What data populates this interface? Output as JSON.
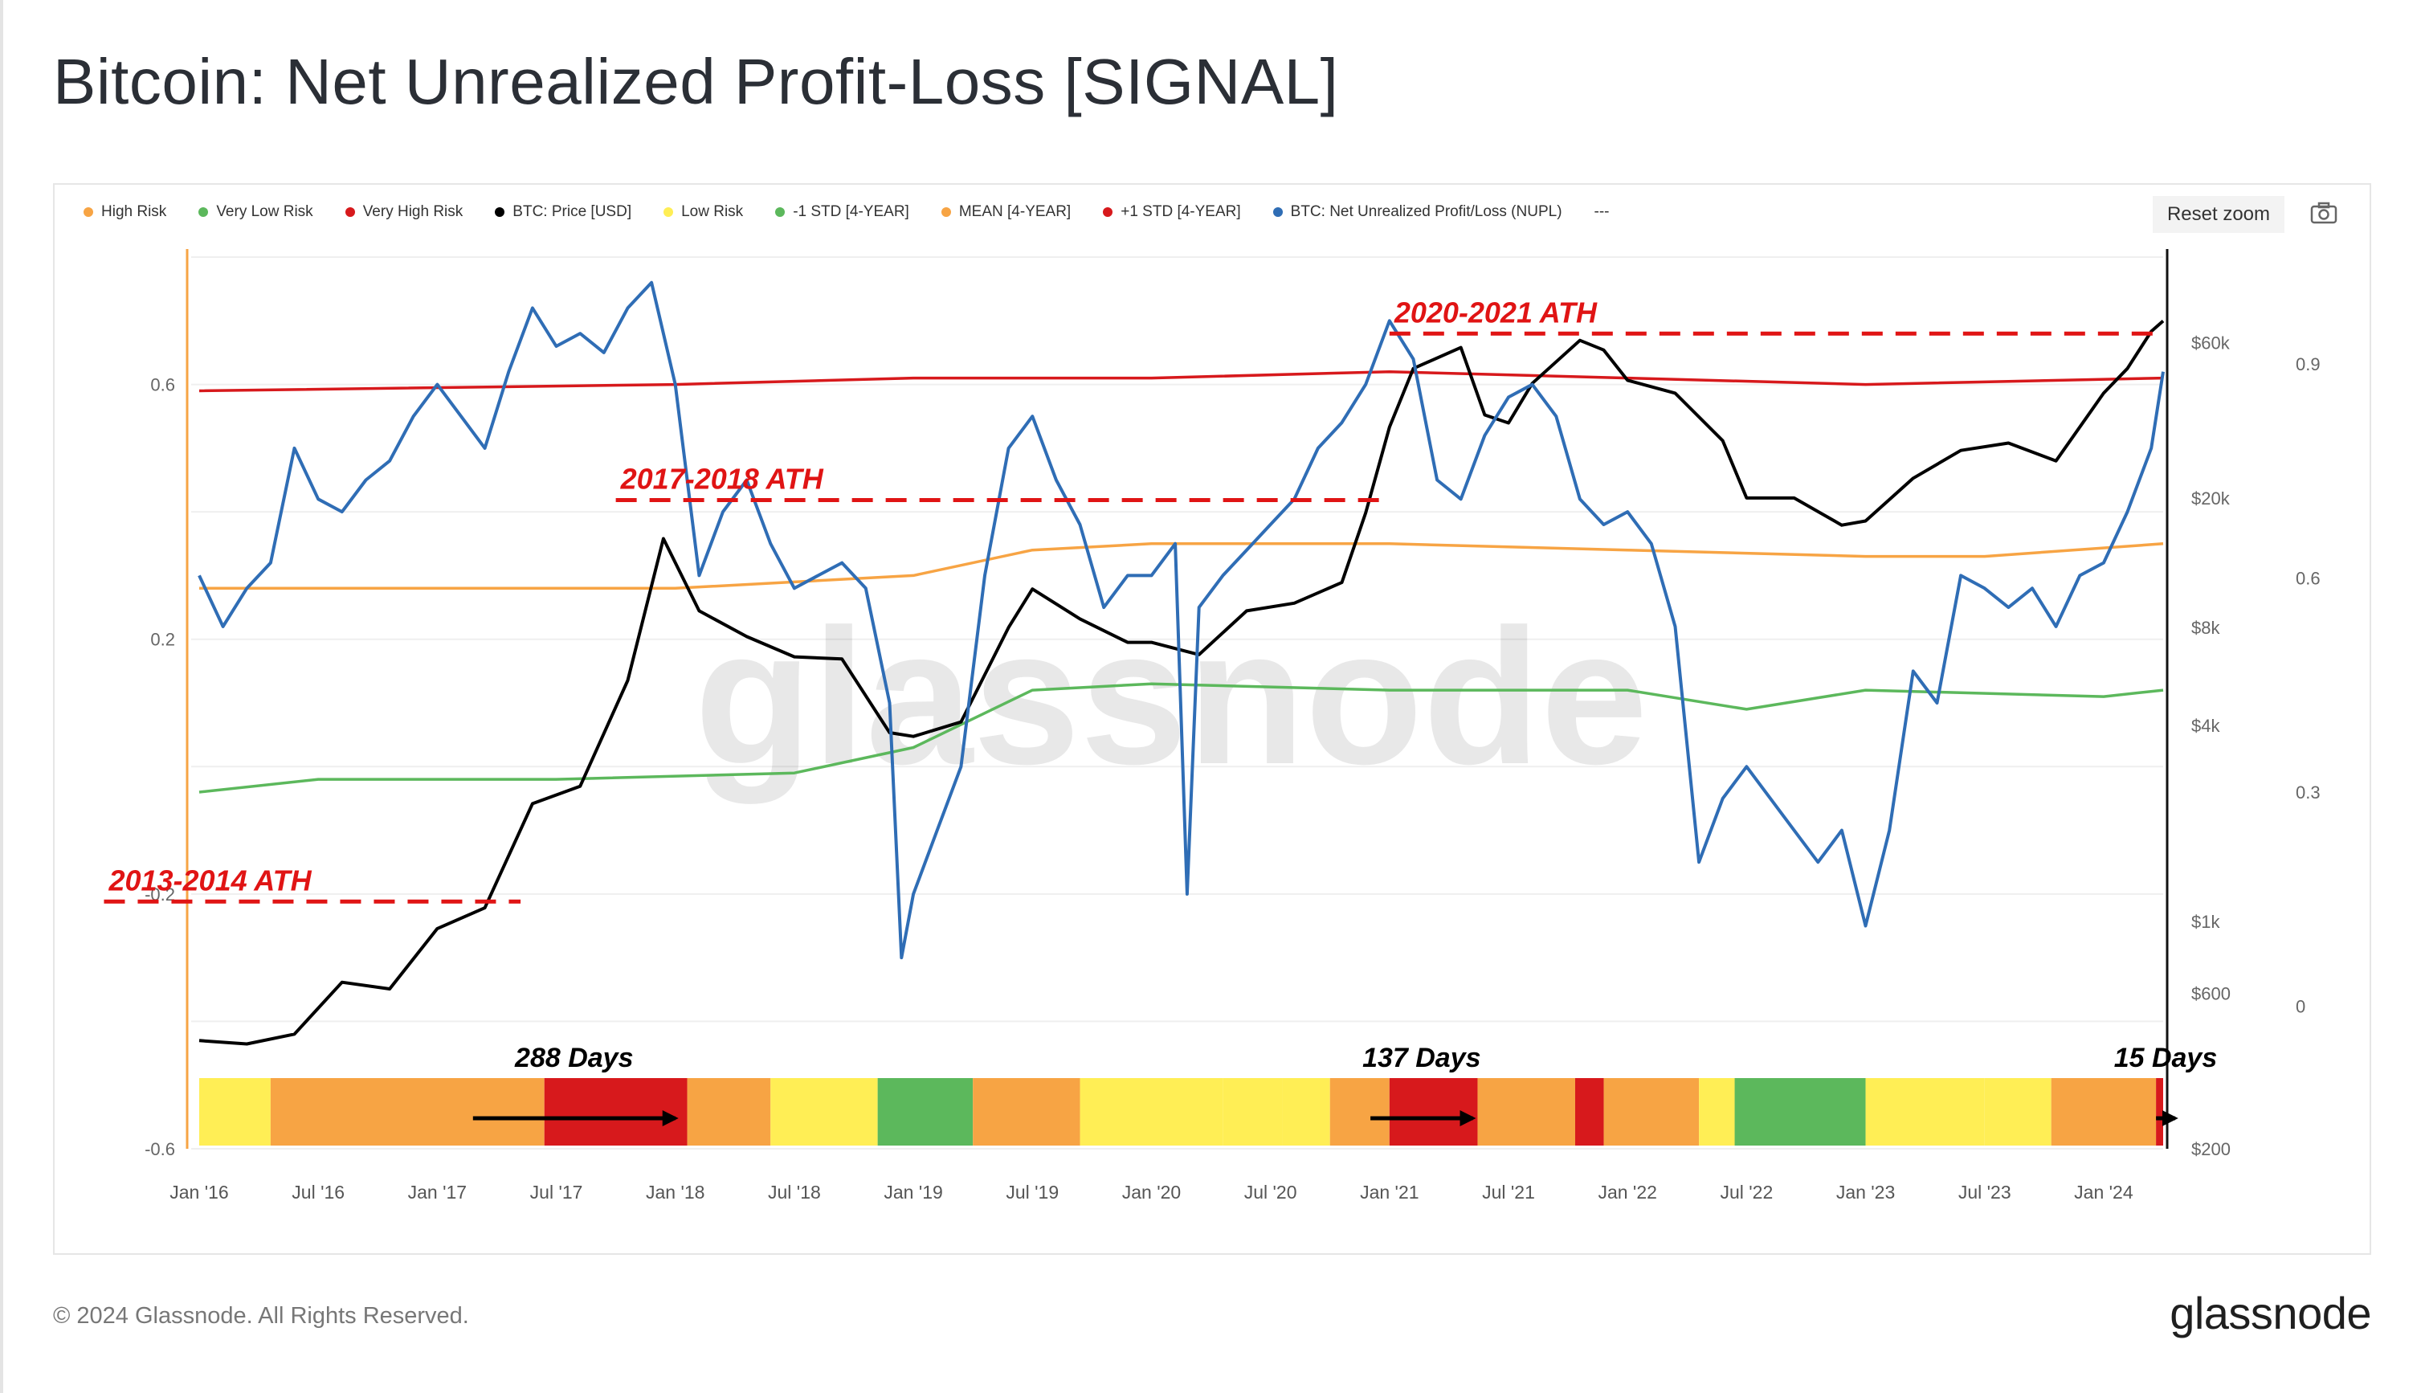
{
  "title": "Bitcoin: Net Unrealized Profit-Loss [SIGNAL]",
  "legend": [
    {
      "label": "High Risk",
      "color": "#f7a444"
    },
    {
      "label": "Very Low Risk",
      "color": "#5cb85c"
    },
    {
      "label": "Very High Risk",
      "color": "#d7191c"
    },
    {
      "label": "BTC: Price [USD]",
      "color": "#000000"
    },
    {
      "label": "Low Risk",
      "color": "#ffee55"
    },
    {
      "label": "-1 STD [4-YEAR]",
      "color": "#5cb85c"
    },
    {
      "label": "MEAN [4-YEAR]",
      "color": "#f7a444"
    },
    {
      "label": "+1 STD [4-YEAR]",
      "color": "#d7191c"
    },
    {
      "label": "BTC: Net Unrealized Profit/Loss (NUPL)",
      "color": "#2f6db5"
    }
  ],
  "legend_more": "---",
  "reset_zoom": "Reset zoom",
  "watermark": "glassnode",
  "copyright": "© 2024 Glassnode. All Rights Reserved.",
  "brand": "glassnode",
  "chart_data": {
    "type": "line",
    "title": "Bitcoin: Net Unrealized Profit-Loss [SIGNAL]",
    "x_range": [
      "2016-01-01",
      "2024-04-15"
    ],
    "x_ticks": [
      "Jan '16",
      "Jul '16",
      "Jan '17",
      "Jul '17",
      "Jan '18",
      "Jul '18",
      "Jan '19",
      "Jul '19",
      "Jan '20",
      "Jul '20",
      "Jan '21",
      "Jul '21",
      "Jan '22",
      "Jul '22",
      "Jan '23",
      "Jul '23",
      "Jan '24"
    ],
    "left_axis": {
      "ticks": [
        "0.6",
        "0.2",
        "-0.2",
        "-0.6"
      ],
      "range": [
        -0.6,
        0.8
      ]
    },
    "price_axis": {
      "scale": "log",
      "ticks": [
        "$60k",
        "$20k",
        "$8k",
        "$4k",
        "$1k",
        "$600",
        "$200"
      ],
      "values": [
        60000,
        20000,
        8000,
        4000,
        1000,
        600,
        200
      ]
    },
    "right_axis": {
      "ticks": [
        "0.9",
        "0.6",
        "0.3",
        "0"
      ],
      "values": [
        0.9,
        0.6,
        0.3,
        0
      ]
    },
    "series": [
      {
        "name": "BTC: Net Unrealized Profit/Loss (NUPL)",
        "color": "#2f6db5",
        "x": [
          2016.0,
          2016.1,
          2016.2,
          2016.3,
          2016.4,
          2016.5,
          2016.6,
          2016.7,
          2016.8,
          2016.9,
          2017.0,
          2017.1,
          2017.2,
          2017.3,
          2017.4,
          2017.5,
          2017.6,
          2017.7,
          2017.8,
          2017.9,
          2018.0,
          2018.1,
          2018.2,
          2018.3,
          2018.4,
          2018.5,
          2018.6,
          2018.7,
          2018.8,
          2018.9,
          2018.95,
          2019.0,
          2019.1,
          2019.2,
          2019.3,
          2019.4,
          2019.5,
          2019.6,
          2019.7,
          2019.8,
          2019.9,
          2020.0,
          2020.1,
          2020.15,
          2020.2,
          2020.3,
          2020.4,
          2020.5,
          2020.6,
          2020.7,
          2020.8,
          2020.9,
          2021.0,
          2021.1,
          2021.2,
          2021.3,
          2021.4,
          2021.5,
          2021.6,
          2021.7,
          2021.8,
          2021.9,
          2022.0,
          2022.1,
          2022.2,
          2022.3,
          2022.4,
          2022.5,
          2022.6,
          2022.7,
          2022.8,
          2022.9,
          2023.0,
          2023.1,
          2023.2,
          2023.3,
          2023.4,
          2023.5,
          2023.6,
          2023.7,
          2023.8,
          2023.9,
          2024.0,
          2024.1,
          2024.2,
          2024.25
        ],
        "y": [
          0.3,
          0.22,
          0.28,
          0.32,
          0.5,
          0.42,
          0.4,
          0.45,
          0.48,
          0.55,
          0.6,
          0.55,
          0.5,
          0.62,
          0.72,
          0.66,
          0.68,
          0.65,
          0.72,
          0.76,
          0.6,
          0.3,
          0.4,
          0.45,
          0.35,
          0.28,
          0.3,
          0.32,
          0.28,
          0.1,
          -0.3,
          -0.2,
          -0.1,
          0.0,
          0.3,
          0.5,
          0.55,
          0.45,
          0.38,
          0.25,
          0.3,
          0.3,
          0.35,
          -0.2,
          0.25,
          0.3,
          0.34,
          0.38,
          0.42,
          0.5,
          0.54,
          0.6,
          0.7,
          0.64,
          0.45,
          0.42,
          0.52,
          0.58,
          0.6,
          0.55,
          0.42,
          0.38,
          0.4,
          0.35,
          0.22,
          -0.15,
          -0.05,
          0.0,
          -0.05,
          -0.1,
          -0.15,
          -0.1,
          -0.25,
          -0.1,
          0.15,
          0.1,
          0.3,
          0.28,
          0.25,
          0.28,
          0.22,
          0.3,
          0.32,
          0.4,
          0.5,
          0.62
        ]
      },
      {
        "name": "BTC: Price [USD]",
        "color": "#000000",
        "axis": "price",
        "x": [
          2016.0,
          2016.2,
          2016.4,
          2016.6,
          2016.8,
          2017.0,
          2017.2,
          2017.4,
          2017.6,
          2017.8,
          2017.95,
          2018.1,
          2018.3,
          2018.5,
          2018.7,
          2018.9,
          2019.0,
          2019.2,
          2019.4,
          2019.5,
          2019.7,
          2019.9,
          2020.0,
          2020.2,
          2020.4,
          2020.6,
          2020.8,
          2020.9,
          2021.0,
          2021.1,
          2021.3,
          2021.4,
          2021.5,
          2021.6,
          2021.8,
          2021.9,
          2022.0,
          2022.2,
          2022.4,
          2022.5,
          2022.7,
          2022.9,
          2023.0,
          2023.2,
          2023.4,
          2023.6,
          2023.8,
          2024.0,
          2024.1,
          2024.2,
          2024.25
        ],
        "y": [
          430,
          420,
          450,
          650,
          620,
          950,
          1100,
          2300,
          2600,
          5500,
          15000,
          9000,
          7500,
          6500,
          6400,
          3800,
          3700,
          4100,
          8000,
          10500,
          8500,
          7200,
          7200,
          6600,
          9000,
          9500,
          11000,
          18000,
          33000,
          50000,
          58000,
          36000,
          34000,
          45000,
          61000,
          57000,
          46000,
          42000,
          30000,
          20000,
          20000,
          16500,
          17000,
          23000,
          28000,
          29500,
          26000,
          42000,
          50000,
          65000,
          70000
        ]
      },
      {
        "name": "+1 STD [4-YEAR]",
        "color": "#d7191c",
        "x": [
          2016.0,
          2018.0,
          2019.0,
          2020.0,
          2021.0,
          2022.0,
          2023.0,
          2024.25
        ],
        "y": [
          0.59,
          0.6,
          0.61,
          0.61,
          0.62,
          0.61,
          0.6,
          0.61
        ]
      },
      {
        "name": "MEAN [4-YEAR]",
        "color": "#f7a444",
        "x": [
          2016.0,
          2018.0,
          2019.0,
          2019.5,
          2020.0,
          2021.0,
          2022.0,
          2023.0,
          2023.5,
          2024.25
        ],
        "y": [
          0.28,
          0.28,
          0.3,
          0.34,
          0.35,
          0.35,
          0.34,
          0.33,
          0.33,
          0.35
        ]
      },
      {
        "name": "-1 STD [4-YEAR]",
        "color": "#5cb85c",
        "x": [
          2016.0,
          2016.5,
          2017.5,
          2018.5,
          2019.0,
          2019.5,
          2020.0,
          2021.0,
          2022.0,
          2022.5,
          2023.0,
          2024.0,
          2024.25
        ],
        "y": [
          -0.04,
          -0.02,
          -0.02,
          -0.01,
          0.03,
          0.12,
          0.13,
          0.12,
          0.12,
          0.09,
          0.12,
          0.11,
          0.12
        ]
      }
    ],
    "risk_band": [
      {
        "from": 2016.0,
        "to": 2016.3,
        "level": "Low Risk"
      },
      {
        "from": 2016.3,
        "to": 2017.45,
        "level": "High Risk"
      },
      {
        "from": 2017.45,
        "to": 2018.05,
        "level": "Very High Risk"
      },
      {
        "from": 2018.05,
        "to": 2018.4,
        "level": "High Risk"
      },
      {
        "from": 2018.4,
        "to": 2018.85,
        "level": "Low Risk"
      },
      {
        "from": 2018.85,
        "to": 2019.25,
        "level": "Very Low Risk"
      },
      {
        "from": 2019.25,
        "to": 2019.7,
        "level": "High Risk"
      },
      {
        "from": 2019.7,
        "to": 2020.3,
        "level": "Low Risk"
      },
      {
        "from": 2020.3,
        "to": 2020.55,
        "level": "Low Risk"
      },
      {
        "from": 2020.55,
        "to": 2020.75,
        "level": "Low Risk"
      },
      {
        "from": 2020.75,
        "to": 2021.0,
        "level": "High Risk"
      },
      {
        "from": 2021.0,
        "to": 2021.37,
        "level": "Very High Risk"
      },
      {
        "from": 2021.37,
        "to": 2021.78,
        "level": "High Risk"
      },
      {
        "from": 2021.78,
        "to": 2021.9,
        "level": "Very High Risk"
      },
      {
        "from": 2021.9,
        "to": 2022.3,
        "level": "High Risk"
      },
      {
        "from": 2022.3,
        "to": 2022.45,
        "level": "Low Risk"
      },
      {
        "from": 2022.45,
        "to": 2023.0,
        "level": "Very Low Risk"
      },
      {
        "from": 2023.0,
        "to": 2023.5,
        "level": "Low Risk"
      },
      {
        "from": 2023.5,
        "to": 2023.78,
        "level": "Low Risk"
      },
      {
        "from": 2023.78,
        "to": 2024.22,
        "level": "High Risk"
      },
      {
        "from": 2024.22,
        "to": 2024.25,
        "level": "Very High Risk"
      }
    ],
    "ath_annotations": [
      {
        "label": "2013-2014 ATH",
        "price": 1150,
        "from": 2015.6,
        "to": 2017.35
      },
      {
        "label": "2017-2018 ATH",
        "price": 19700,
        "from": 2017.75,
        "to": 2021.0
      },
      {
        "label": "2020-2021 ATH",
        "price": 64000,
        "from": 2021.0,
        "to": 2024.25
      }
    ],
    "duration_annotations": [
      {
        "label": "288 Days",
        "from": 2017.15,
        "to": 2018.0
      },
      {
        "label": "137 Days",
        "from": 2020.92,
        "to": 2021.35
      },
      {
        "label": "15 Days",
        "from": 2024.22,
        "to": 2024.3
      }
    ]
  }
}
